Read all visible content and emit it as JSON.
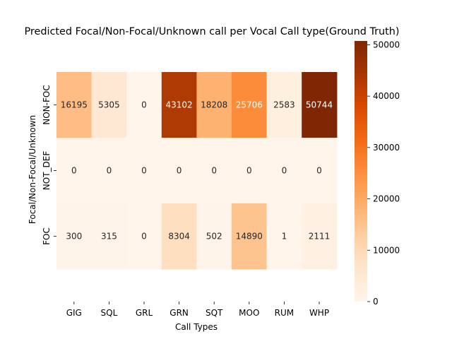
{
  "chart_data": {
    "type": "heatmap",
    "title": "Predicted Focal/Non-Focal/Unknown call per Vocal Call type(Ground Truth)",
    "xlabel": "Call Types",
    "ylabel": "Focal/Non-Focal/Unknown",
    "x_categories": [
      "GIG",
      "SQL",
      "GRL",
      "GRN",
      "SQT",
      "MOO",
      "RUM",
      "WHP"
    ],
    "y_categories": [
      "NON-FOC",
      "NOT_DEF",
      "FOC"
    ],
    "values": [
      [
        16195,
        5305,
        0,
        43102,
        18208,
        25706,
        2583,
        50744
      ],
      [
        0,
        0,
        0,
        0,
        0,
        0,
        0,
        0
      ],
      [
        300,
        315,
        0,
        8304,
        502,
        14890,
        1,
        2111
      ]
    ],
    "colormap": "Oranges",
    "colorbar": {
      "range": [
        0,
        50744
      ],
      "ticks": [
        0,
        10000,
        20000,
        30000,
        40000,
        50000
      ]
    },
    "annotations": true,
    "grid": false
  }
}
